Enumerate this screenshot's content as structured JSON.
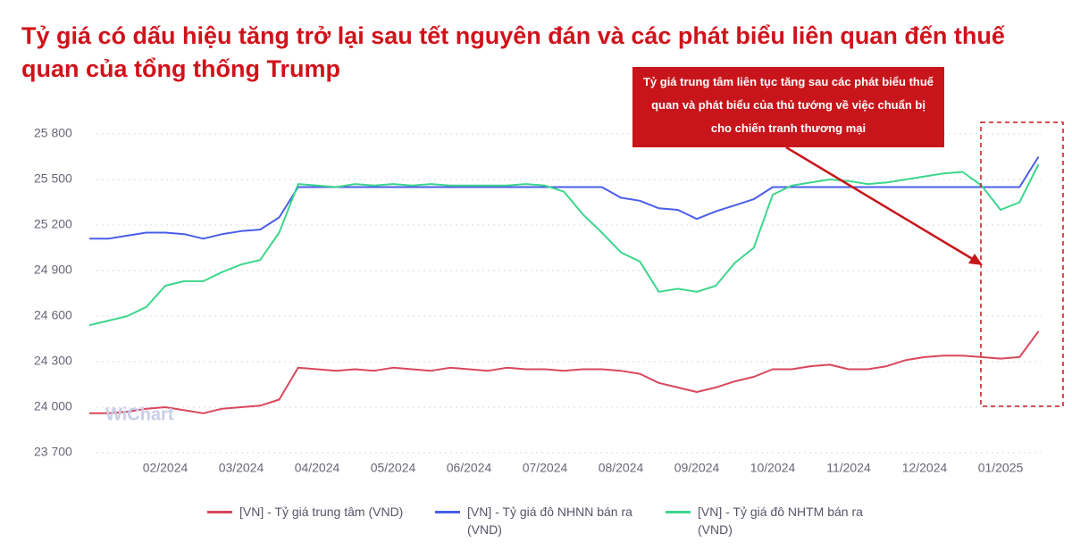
{
  "chart_data": {
    "type": "line",
    "title": "Tỷ giá có dấu hiệu tăng trở lại sau tết nguyên đán và các phát biểu liên quan đến thuế quan của tổng thống Trump",
    "annotation": "Tỷ giá trung tâm liên tục tăng sau các phát biểu thuế quan và phát biểu của thủ tướng về việc chuẩn bị cho chiến tranh thương mại",
    "watermark": "WiChart",
    "categories": [
      null,
      null,
      null,
      null,
      "02/2024",
      null,
      null,
      null,
      "03/2024",
      null,
      null,
      null,
      "04/2024",
      null,
      null,
      null,
      "05/2024",
      null,
      null,
      null,
      "06/2024",
      null,
      null,
      null,
      "07/2024",
      null,
      null,
      null,
      "08/2024",
      null,
      null,
      null,
      "09/2024",
      null,
      null,
      null,
      "10/2024",
      null,
      null,
      null,
      "11/2024",
      null,
      null,
      null,
      "12/2024",
      null,
      null,
      null,
      "01/2025",
      null,
      null
    ],
    "series": [
      {
        "name": "[VN] - Tỷ giá trung tâm (VND)",
        "color": "#d9475a",
        "values": [
          23960,
          23960,
          23970,
          23990,
          24000,
          23980,
          23960,
          23990,
          24000,
          24010,
          24050,
          24260,
          24250,
          24240,
          24250,
          24240,
          24260,
          24250,
          24240,
          24260,
          24250,
          24240,
          24260,
          24250,
          24250,
          24240,
          24250,
          24250,
          24240,
          24220,
          24160,
          24130,
          24100,
          24130,
          24170,
          24200,
          24250,
          24250,
          24270,
          24280,
          24250,
          24250,
          24270,
          24310,
          24330,
          24340,
          24340,
          24330,
          24320,
          24330,
          24500
        ]
      },
      {
        "name": "[VN] - Tỷ giá đô NHNN bán ra (VND)",
        "color": "#4a5ee8",
        "values": [
          25110,
          25110,
          25130,
          25150,
          25150,
          25140,
          25110,
          25140,
          25160,
          25170,
          25250,
          25450,
          25450,
          25450,
          25450,
          25450,
          25450,
          25450,
          25450,
          25450,
          25450,
          25450,
          25450,
          25450,
          25450,
          25450,
          25450,
          25450,
          25380,
          25360,
          25310,
          25300,
          25240,
          25290,
          25330,
          25370,
          25450,
          25450,
          25450,
          25450,
          25450,
          25450,
          25450,
          25450,
          25450,
          25450,
          25450,
          25450,
          25450,
          25450,
          25650
        ]
      },
      {
        "name": "[VN] - Tỷ giá đô NHTM bán ra (VND)",
        "color": "#3dd68c",
        "values": [
          24540,
          24570,
          24600,
          24660,
          24800,
          24830,
          24830,
          24890,
          24940,
          24970,
          25150,
          25470,
          25460,
          25450,
          25470,
          25460,
          25470,
          25460,
          25470,
          25460,
          25460,
          25460,
          25460,
          25470,
          25460,
          25420,
          25270,
          25150,
          25020,
          24960,
          24760,
          24780,
          24760,
          24800,
          24950,
          25050,
          25400,
          25460,
          25480,
          25500,
          25490,
          25470,
          25480,
          25500,
          25520,
          25540,
          25550,
          25460,
          25300,
          25350,
          25600
        ]
      }
    ],
    "ylim": [
      23700,
      25800
    ],
    "yticks": [
      {
        "value": 23700,
        "label": "23 700"
      },
      {
        "value": 24000,
        "label": "24 000"
      },
      {
        "value": 24300,
        "label": "24 300"
      },
      {
        "value": 24600,
        "label": "24 600"
      },
      {
        "value": 24900,
        "label": "24 900"
      },
      {
        "value": 25200,
        "label": "25 200"
      },
      {
        "value": 25500,
        "label": "25 500"
      },
      {
        "value": 25800,
        "label": "25 800"
      }
    ],
    "grid": true
  }
}
